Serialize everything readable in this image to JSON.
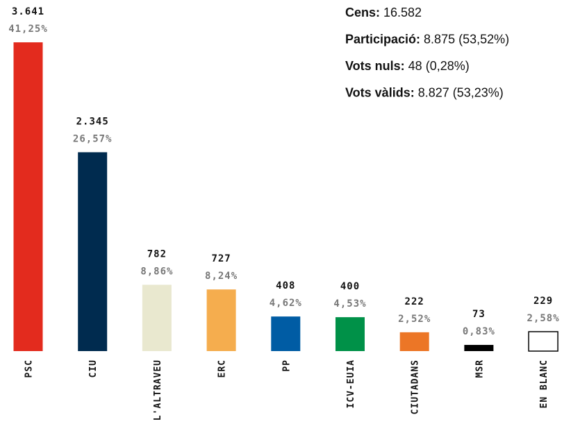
{
  "chart_data": {
    "type": "bar",
    "categories": [
      "PSC",
      "CIU",
      "L'ALTRAVEU",
      "ERC",
      "PP",
      "ICV-EUIA",
      "CIUTADANS",
      "MSR",
      "EN BLANC"
    ],
    "values": [
      3641,
      2345,
      782,
      727,
      408,
      400,
      222,
      73,
      229
    ],
    "value_labels": [
      "3.641",
      "2.345",
      "782",
      "727",
      "408",
      "400",
      "222",
      "73",
      "229"
    ],
    "percentages": [
      41.25,
      26.57,
      8.86,
      8.24,
      4.62,
      4.53,
      2.52,
      0.83,
      2.58
    ],
    "percentage_labels": [
      "41,25%",
      "26,57%",
      "8,86%",
      "8,24%",
      "4,62%",
      "4,53%",
      "2,52%",
      "0,83%",
      "2,58%"
    ],
    "colors": [
      "#e32b1e",
      "#002b4f",
      "#e9e8cf",
      "#f5ad4e",
      "#005ca4",
      "#009148",
      "#ec7626",
      "#000000",
      "#ffffff"
    ],
    "ylim": [
      0,
      3641
    ],
    "stats": [
      {
        "label": "Cens:",
        "value": "16.582"
      },
      {
        "label": "Participació:",
        "value": "8.875 (53,52%)"
      },
      {
        "label": "Vots nuls:",
        "value": "48 (0,28%)"
      },
      {
        "label": "Vots vàlids:",
        "value": "8.827 (53,23%)"
      }
    ]
  }
}
